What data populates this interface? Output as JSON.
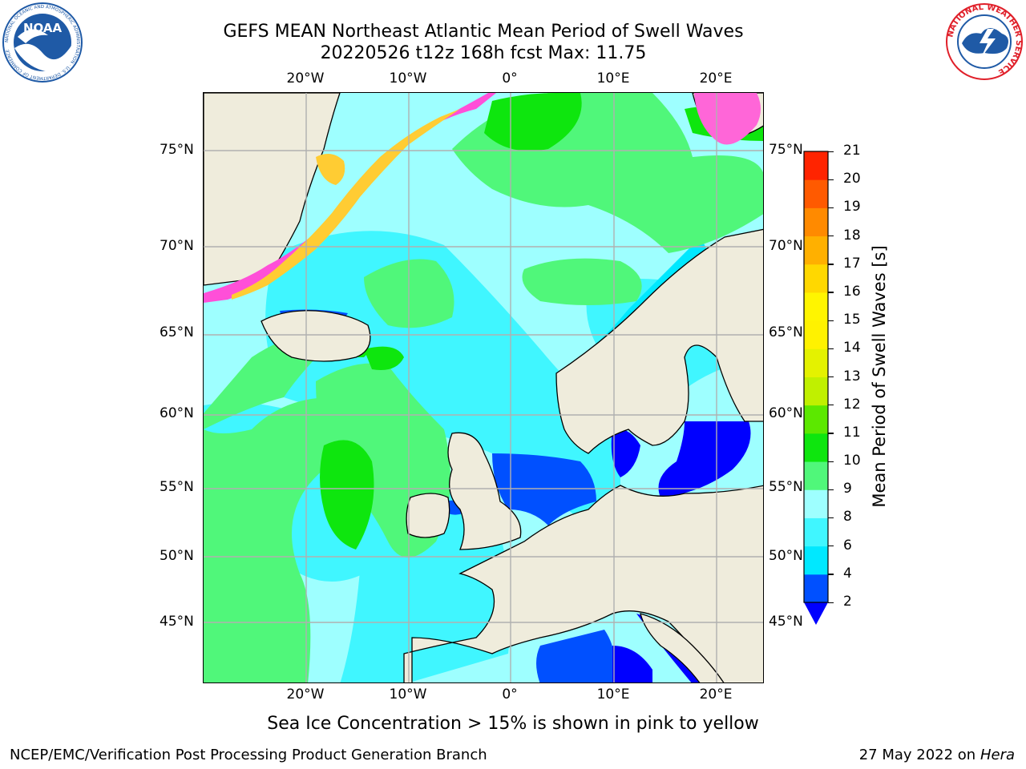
{
  "title_line1": "GEFS MEAN Northeast Atlantic Mean Period of Swell Waves",
  "title_line2": "20220526 t12z 168h fcst   Max: 11.75",
  "logos": {
    "noaa": {
      "text": "NOAA",
      "ring_text": "NATIONAL OCEANIC AND ATMOSPHERIC ADMINISTRATION · U.S. DEPARTMENT OF COMMERCE",
      "color": "#1f5aa6"
    },
    "nws": {
      "ring_text": "NATIONAL WEATHER SERVICE",
      "color": "#e0202a"
    }
  },
  "map": {
    "lon_labels": [
      "20°W",
      "10°W",
      "0°",
      "10°E",
      "20°E"
    ],
    "lat_labels": [
      "75°N",
      "70°N",
      "65°N",
      "60°N",
      "55°N",
      "50°N",
      "45°N"
    ],
    "land_color": "#efecdc",
    "grid_color": "#b0b0b0",
    "ice_colors": [
      "#ff4fd8",
      "#ffcc33"
    ]
  },
  "colorbar": {
    "label": "Mean Period of Swell Waves [s]",
    "ticks": [
      "2",
      "4",
      "6",
      "8",
      "9",
      "10",
      "11",
      "12",
      "13",
      "14",
      "15",
      "16",
      "17",
      "18",
      "19",
      "20",
      "21"
    ],
    "colors": [
      "#0050ff",
      "#00e8ff",
      "#40f6ff",
      "#9effff",
      "#50f77a",
      "#0ee60e",
      "#5ce800",
      "#c0f000",
      "#e4f200",
      "#fff200",
      "#fff500",
      "#ffd800",
      "#ffb000",
      "#ff8a00",
      "#ff5a00",
      "#ff2400"
    ],
    "under_color": "#0000ff"
  },
  "caption": "Sea Ice Concentration > 15% is shown in pink to yellow",
  "footer_left": "NCEP/EMC/Verification Post Processing Product Generation Branch",
  "footer_right_date": "27 May 2022 on",
  "footer_right_host": "Hera"
}
